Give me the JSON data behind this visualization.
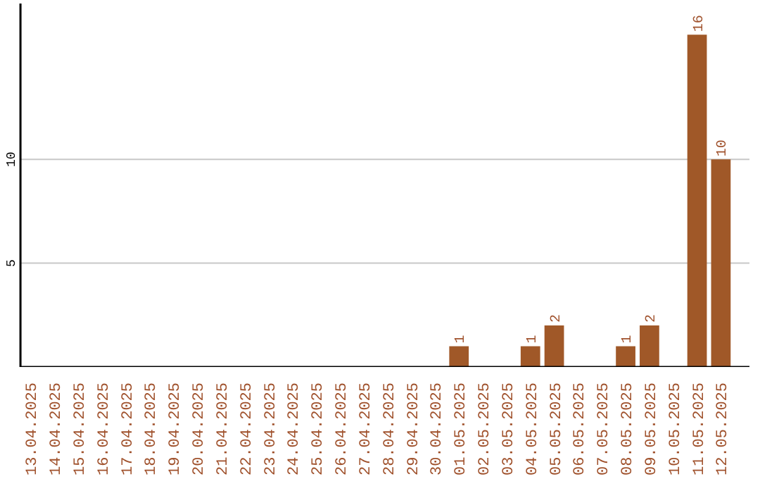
{
  "chart_data": {
    "type": "bar",
    "categories": [
      "13.04.2025",
      "14.04.2025",
      "15.04.2025",
      "16.04.2025",
      "17.04.2025",
      "18.04.2025",
      "19.04.2025",
      "20.04.2025",
      "21.04.2025",
      "22.04.2025",
      "23.04.2025",
      "24.04.2025",
      "25.04.2025",
      "26.04.2025",
      "27.04.2025",
      "28.04.2025",
      "29.04.2025",
      "30.04.2025",
      "01.05.2025",
      "02.05.2025",
      "03.05.2025",
      "04.05.2025",
      "05.05.2025",
      "06.05.2025",
      "07.05.2025",
      "08.05.2025",
      "09.05.2025",
      "10.05.2025",
      "11.05.2025",
      "12.05.2025"
    ],
    "values": [
      0,
      0,
      0,
      0,
      0,
      0,
      0,
      0,
      0,
      0,
      0,
      0,
      0,
      0,
      0,
      0,
      0,
      0,
      1,
      0,
      0,
      1,
      2,
      0,
      0,
      1,
      2,
      0,
      16,
      10
    ],
    "value_labels": [
      null,
      null,
      null,
      null,
      null,
      null,
      null,
      null,
      null,
      null,
      null,
      null,
      null,
      null,
      null,
      null,
      null,
      null,
      "1",
      null,
      null,
      "1",
      "2",
      null,
      null,
      "1",
      "2",
      null,
      "16",
      "10"
    ],
    "color": "#a05828",
    "ylim": [
      0,
      17.5
    ],
    "yticks": [
      5,
      10
    ],
    "grid": "y"
  }
}
